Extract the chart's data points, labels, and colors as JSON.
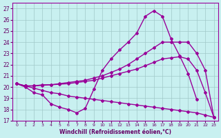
{
  "xlabel": "Windchill (Refroidissement éolien,°C)",
  "ylabel": "",
  "background_color": "#c8f0f0",
  "grid_color": "#a0c8c8",
  "line_color": "#990099",
  "xlim": [
    -0.5,
    23.5
  ],
  "ylim": [
    17,
    27.5
  ],
  "yticks": [
    17,
    18,
    19,
    20,
    21,
    22,
    23,
    24,
    25,
    26,
    27
  ],
  "xticks": [
    0,
    1,
    2,
    3,
    4,
    5,
    6,
    7,
    8,
    9,
    10,
    11,
    12,
    13,
    14,
    15,
    16,
    17,
    18,
    19,
    20,
    21,
    22,
    23
  ],
  "series": [
    {
      "x": [
        0,
        1,
        2,
        3,
        4,
        5,
        6,
        7,
        8,
        9,
        10,
        11,
        12,
        13,
        14,
        15,
        16,
        17,
        18,
        19,
        20,
        21
      ],
      "y": [
        20.3,
        20.0,
        19.5,
        19.3,
        18.5,
        18.2,
        18.0,
        17.7,
        18.1,
        19.8,
        21.5,
        22.5,
        23.3,
        24.0,
        24.8,
        26.3,
        26.8,
        26.3,
        24.3,
        22.8,
        21.2,
        18.9
      ],
      "marker": "D",
      "markersize": 2.0,
      "linewidth": 1.0
    },
    {
      "x": [
        0,
        1,
        2,
        3,
        4,
        5,
        6,
        7,
        8,
        9,
        10,
        11,
        12,
        13,
        14,
        15,
        16,
        17,
        18,
        19,
        20,
        21,
        22,
        23
      ],
      "y": [
        20.3,
        20.1,
        20.1,
        20.2,
        20.2,
        20.3,
        20.4,
        20.5,
        20.6,
        20.8,
        21.0,
        21.3,
        21.6,
        22.0,
        22.5,
        23.0,
        23.5,
        24.0,
        24.0,
        24.0,
        24.0,
        23.0,
        21.5,
        17.3
      ],
      "marker": "D",
      "markersize": 2.0,
      "linewidth": 1.0
    },
    {
      "x": [
        0,
        1,
        2,
        3,
        4,
        5,
        6,
        7,
        8,
        9,
        10,
        11,
        12,
        13,
        14,
        15,
        16,
        17,
        18,
        19,
        20,
        21,
        22,
        23
      ],
      "y": [
        20.3,
        20.1,
        20.1,
        20.15,
        20.2,
        20.25,
        20.3,
        20.4,
        20.5,
        20.6,
        20.8,
        21.0,
        21.2,
        21.4,
        21.6,
        21.9,
        22.2,
        22.5,
        22.6,
        22.7,
        22.5,
        21.5,
        19.5,
        17.3
      ],
      "marker": "D",
      "markersize": 2.0,
      "linewidth": 1.0
    },
    {
      "x": [
        0,
        1,
        2,
        3,
        4,
        5,
        6,
        7,
        8,
        9,
        10,
        11,
        12,
        13,
        14,
        15,
        16,
        17,
        18,
        19,
        20,
        21,
        22,
        23
      ],
      "y": [
        20.3,
        20.1,
        19.9,
        19.7,
        19.5,
        19.4,
        19.2,
        19.1,
        19.0,
        18.9,
        18.8,
        18.7,
        18.6,
        18.5,
        18.4,
        18.3,
        18.2,
        18.1,
        18.0,
        17.9,
        17.8,
        17.7,
        17.5,
        17.3
      ],
      "marker": "D",
      "markersize": 2.0,
      "linewidth": 1.0
    }
  ]
}
